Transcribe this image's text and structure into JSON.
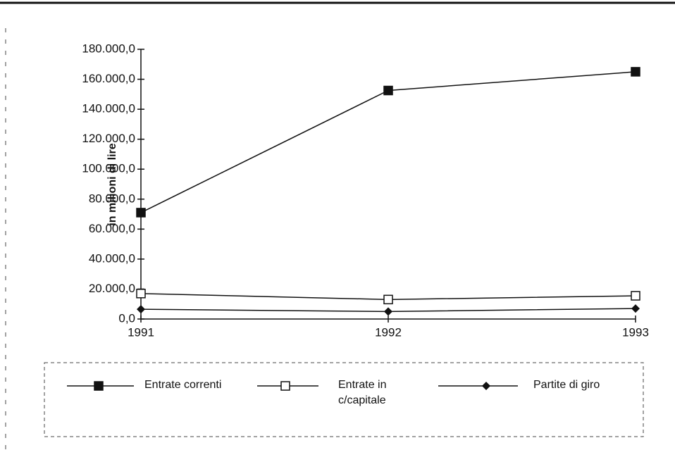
{
  "chart_data": {
    "type": "line",
    "y_label": "in milioni di lire",
    "categories": [
      "1991",
      "1992",
      "1993"
    ],
    "series": [
      {
        "name": "Entrate correnti",
        "color": "#111111",
        "marker": "square-filled",
        "values": [
          71000,
          152500,
          165000
        ]
      },
      {
        "name": "Entrate in c/capitale",
        "color": "#111111",
        "marker": "square-open",
        "values": [
          17000,
          13000,
          15500
        ]
      },
      {
        "name": "Partite di giro",
        "color": "#111111",
        "marker": "diamond",
        "values": [
          6500,
          5000,
          7000
        ]
      }
    ],
    "ylim": [
      0,
      180000
    ],
    "yticks": [
      {
        "value": 0,
        "label": "0,0"
      },
      {
        "value": 20000,
        "label": "20.000,0"
      },
      {
        "value": 40000,
        "label": "40.000,0"
      },
      {
        "value": 60000,
        "label": "60.000,0"
      },
      {
        "value": 80000,
        "label": "80.000,0"
      },
      {
        "value": 100000,
        "label": "100.000,0"
      },
      {
        "value": 120000,
        "label": "120.000,0"
      },
      {
        "value": 140000,
        "label": "140.000,0"
      },
      {
        "value": 160000,
        "label": "160.000,0"
      },
      {
        "value": 180000,
        "label": "180.000,0"
      }
    ],
    "grid": false,
    "legend": "bottom"
  }
}
